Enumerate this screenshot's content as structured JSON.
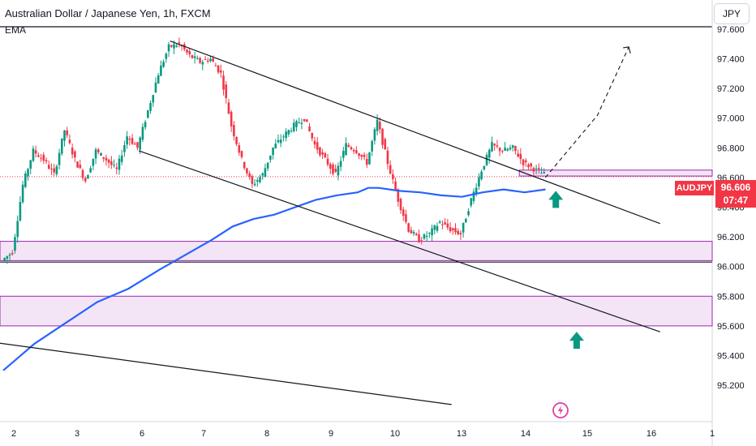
{
  "header": {
    "title": "Australian Dollar / Japanese Yen, 1h, FXCM",
    "indicator": "EMA",
    "currency": "JPY"
  },
  "price_label": {
    "symbol": "AUDJPY",
    "price": "96.606",
    "countdown": "07:47",
    "color": "#f23645"
  },
  "chart_data": {
    "type": "candlestick",
    "y_ticks": [
      "97.600",
      "97.400",
      "97.200",
      "97.000",
      "96.800",
      "96.600",
      "96.400",
      "96.200",
      "96.000",
      "95.800",
      "95.600",
      "95.400",
      "95.200"
    ],
    "y_tick_values": [
      97.6,
      97.4,
      97.2,
      97.0,
      96.8,
      96.6,
      96.4,
      96.2,
      96.0,
      95.8,
      95.6,
      95.4,
      95.2
    ],
    "x_ticks": [
      "2",
      "3",
      "6",
      "7",
      "8",
      "9",
      "10",
      "13",
      "14",
      "15",
      "16",
      "1"
    ],
    "ylim": [
      95.02,
      97.72
    ],
    "colors": {
      "up": "#089981",
      "down": "#f23645",
      "ema": "#2962ff",
      "zone": "#9c27b0",
      "zone_fill": "#f3e5f5",
      "channel": "#131722"
    },
    "price_path": [
      [
        0,
        96.04
      ],
      [
        1,
        96.1
      ],
      [
        2,
        96.55
      ],
      [
        3,
        96.78
      ],
      [
        4,
        96.72
      ],
      [
        5,
        96.62
      ],
      [
        6,
        96.92
      ],
      [
        7,
        96.72
      ],
      [
        8,
        96.58
      ],
      [
        9,
        96.78
      ],
      [
        10,
        96.72
      ],
      [
        11,
        96.65
      ],
      [
        12,
        96.88
      ],
      [
        13,
        96.8
      ],
      [
        14,
        97.05
      ],
      [
        15,
        97.3
      ],
      [
        16,
        97.48
      ],
      [
        17,
        97.5
      ],
      [
        18,
        97.42
      ],
      [
        19,
        97.38
      ],
      [
        20,
        97.4
      ],
      [
        21,
        97.3
      ],
      [
        22,
        96.95
      ],
      [
        23,
        96.72
      ],
      [
        24,
        96.55
      ],
      [
        25,
        96.62
      ],
      [
        26,
        96.8
      ],
      [
        27,
        96.88
      ],
      [
        28,
        96.95
      ],
      [
        29,
        97.0
      ],
      [
        30,
        96.82
      ],
      [
        31,
        96.72
      ],
      [
        32,
        96.62
      ],
      [
        33,
        96.82
      ],
      [
        34,
        96.78
      ],
      [
        35,
        96.7
      ],
      [
        36,
        96.98
      ],
      [
        37,
        96.7
      ],
      [
        38,
        96.45
      ],
      [
        39,
        96.25
      ],
      [
        40,
        96.18
      ],
      [
        41,
        96.22
      ],
      [
        42,
        96.3
      ],
      [
        43,
        96.25
      ],
      [
        44,
        96.22
      ],
      [
        45,
        96.45
      ],
      [
        46,
        96.65
      ],
      [
        47,
        96.82
      ],
      [
        48,
        96.78
      ],
      [
        49,
        96.8
      ],
      [
        50,
        96.7
      ],
      [
        51,
        96.66
      ],
      [
        52,
        96.62
      ]
    ],
    "ema_path": [
      [
        0,
        95.3
      ],
      [
        3,
        95.48
      ],
      [
        6,
        95.62
      ],
      [
        9,
        95.76
      ],
      [
        12,
        95.85
      ],
      [
        15,
        95.98
      ],
      [
        18,
        96.1
      ],
      [
        20,
        96.18
      ],
      [
        22,
        96.27
      ],
      [
        24,
        96.32
      ],
      [
        26,
        96.35
      ],
      [
        28,
        96.4
      ],
      [
        30,
        96.45
      ],
      [
        32,
        96.48
      ],
      [
        34,
        96.5
      ],
      [
        35,
        96.53
      ],
      [
        36,
        96.53
      ],
      [
        38,
        96.51
      ],
      [
        40,
        96.5
      ],
      [
        42,
        96.48
      ],
      [
        44,
        96.47
      ],
      [
        46,
        96.5
      ],
      [
        48,
        96.52
      ],
      [
        50,
        96.5
      ],
      [
        52,
        96.52
      ]
    ],
    "support_zones": [
      {
        "from": 96.04,
        "to": 96.17
      },
      {
        "from": 95.6,
        "to": 95.8
      }
    ],
    "resistance_box": {
      "from": 96.61,
      "to": 96.65
    },
    "channel_lines": [
      {
        "name": "upper",
        "from": [
          16,
          97.52
        ],
        "to": [
          63,
          96.29
        ]
      },
      {
        "name": "lower",
        "from": [
          13,
          96.78
        ],
        "to": [
          63,
          95.56
        ]
      },
      {
        "name": "bottom",
        "from": [
          -1,
          95.49
        ],
        "to": [
          43,
          95.07
        ]
      }
    ],
    "projection": {
      "from": [
        52,
        96.6
      ],
      "to": [
        60,
        97.48
      ]
    },
    "arrows": [
      {
        "x": 53,
        "y": 96.45,
        "dir": "up"
      },
      {
        "x": 55,
        "y": 95.5,
        "dir": "up"
      }
    ]
  }
}
